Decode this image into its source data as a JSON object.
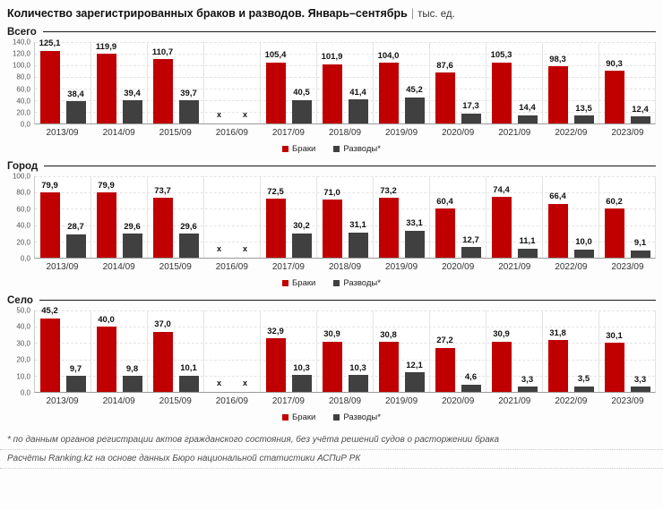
{
  "header": {
    "title": "Количество зарегистрированных браков и разводов. Январь–сентябрь",
    "pipe": "|",
    "unit": "тыс. ед."
  },
  "legend": {
    "marriages": "Браки",
    "divorces": "Разводы*"
  },
  "colors": {
    "marriages": "#c00000",
    "divorces": "#404040"
  },
  "missing_marker": "x",
  "footer": {
    "footnote": "* по данным органов регистрации актов гражданского состояния, без учёта решений судов о расторжении брака",
    "source": "Расчёты Ranking.kz на основе данных Бюро национальной статистики АСПиР РК"
  },
  "chart_data": [
    {
      "type": "bar",
      "panel": "Всего",
      "categories": [
        "2013/09",
        "2014/09",
        "2015/09",
        "2016/09",
        "2017/09",
        "2018/09",
        "2019/09",
        "2020/09",
        "2021/09",
        "2022/09",
        "2023/09"
      ],
      "series": [
        {
          "name": "Браки",
          "values": [
            125.1,
            119.9,
            110.7,
            null,
            105.4,
            101.9,
            104.0,
            87.6,
            105.3,
            98.3,
            90.3
          ],
          "labels": [
            "125,1",
            "119,9",
            "110,7",
            null,
            "105,4",
            "101,9",
            "104,0",
            "87,6",
            "105,3",
            "98,3",
            "90,3"
          ]
        },
        {
          "name": "Разводы*",
          "values": [
            38.4,
            39.4,
            39.7,
            null,
            40.5,
            41.4,
            45.2,
            17.3,
            14.4,
            13.5,
            12.4
          ],
          "labels": [
            "38,4",
            "39,4",
            "39,7",
            null,
            "40,5",
            "41,4",
            "45,2",
            "17,3",
            "14,4",
            "13,5",
            "12,4"
          ]
        }
      ],
      "ylim": [
        0,
        140
      ],
      "yticks": [
        "140,0",
        "120,0",
        "100,0",
        "80,0",
        "60,0",
        "40,0",
        "20,0",
        "0,0"
      ],
      "grid": true,
      "legend_position": "bottom"
    },
    {
      "type": "bar",
      "panel": "Город",
      "categories": [
        "2013/09",
        "2014/09",
        "2015/09",
        "2016/09",
        "2017/09",
        "2018/09",
        "2019/09",
        "2020/09",
        "2021/09",
        "2022/09",
        "2023/09"
      ],
      "series": [
        {
          "name": "Браки",
          "values": [
            79.9,
            79.9,
            73.7,
            null,
            72.5,
            71.0,
            73.2,
            60.4,
            74.4,
            66.4,
            60.2
          ],
          "labels": [
            "79,9",
            "79,9",
            "73,7",
            null,
            "72,5",
            "71,0",
            "73,2",
            "60,4",
            "74,4",
            "66,4",
            "60,2"
          ]
        },
        {
          "name": "Разводы*",
          "values": [
            28.7,
            29.6,
            29.6,
            null,
            30.2,
            31.1,
            33.1,
            12.7,
            11.1,
            10.0,
            9.1
          ],
          "labels": [
            "28,7",
            "29,6",
            "29,6",
            null,
            "30,2",
            "31,1",
            "33,1",
            "12,7",
            "11,1",
            "10,0",
            "9,1"
          ]
        }
      ],
      "ylim": [
        0,
        100
      ],
      "yticks": [
        "100,0",
        "80,0",
        "60,0",
        "40,0",
        "20,0",
        "0,0"
      ],
      "grid": true,
      "legend_position": "bottom"
    },
    {
      "type": "bar",
      "panel": "Село",
      "categories": [
        "2013/09",
        "2014/09",
        "2015/09",
        "2016/09",
        "2017/09",
        "2018/09",
        "2019/09",
        "2020/09",
        "2021/09",
        "2022/09",
        "2023/09"
      ],
      "series": [
        {
          "name": "Браки",
          "values": [
            45.2,
            40.0,
            37.0,
            null,
            32.9,
            30.9,
            30.8,
            27.2,
            30.9,
            31.8,
            30.1
          ],
          "labels": [
            "45,2",
            "40,0",
            "37,0",
            null,
            "32,9",
            "30,9",
            "30,8",
            "27,2",
            "30,9",
            "31,8",
            "30,1"
          ]
        },
        {
          "name": "Разводы*",
          "values": [
            9.7,
            9.8,
            10.1,
            null,
            10.3,
            10.3,
            12.1,
            4.6,
            3.3,
            3.5,
            3.3
          ],
          "labels": [
            "9,7",
            "9,8",
            "10,1",
            null,
            "10,3",
            "10,3",
            "12,1",
            "4,6",
            "3,3",
            "3,5",
            "3,3"
          ]
        }
      ],
      "ylim": [
        0,
        50
      ],
      "yticks": [
        "50,0",
        "40,0",
        "30,0",
        "20,0",
        "10,0",
        "0,0"
      ],
      "grid": true,
      "legend_position": "bottom"
    }
  ]
}
